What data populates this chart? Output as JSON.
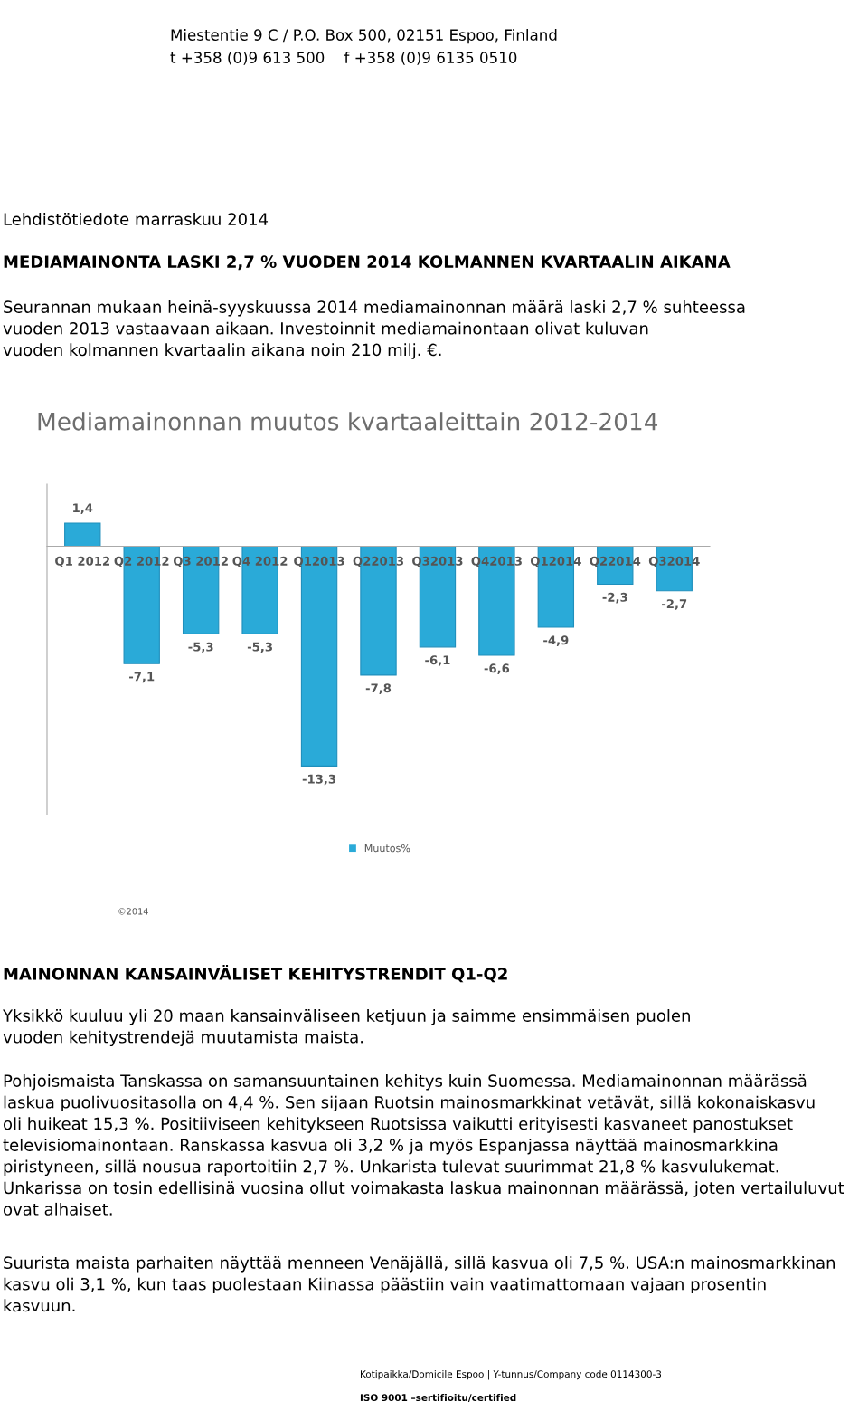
{
  "chart_data": {
    "type": "bar",
    "title": "Mediamainonnan muutos kvartaaleittain 2012-2014",
    "categories": [
      "Q1 2012",
      "Q2 2012",
      "Q3 2012",
      "Q4 2012",
      "Q12013",
      "Q22013",
      "Q32013",
      "Q42013",
      "Q12014",
      "Q22014",
      "Q32014"
    ],
    "series": [
      {
        "name": "Muutos%",
        "color": "#2aaad8",
        "values": [
          1.4,
          -7.1,
          -5.3,
          -5.3,
          -13.3,
          -7.8,
          -6.1,
          -6.6,
          -4.9,
          -2.3,
          -2.7
        ],
        "value_labels": [
          "1,4",
          "-7,1",
          "-5,3",
          "-5,3",
          "-13,3",
          "-7,8",
          "-6,1",
          "-6,6",
          "-4,9",
          "-2,3",
          "-2,7"
        ]
      }
    ],
    "legend": "bottom",
    "annotations": [
      "Miestentie 9 C / P.O. Box 500, 02151 Espoo, Finland",
      "t +358 (0)9 613 500    f +358 (0)9 6135 0510",
      "Lehdistötiedote marraskuu 2014",
      "MEDIAMAINONTA LASKI 2,7 % VUODEN 2014 KOLMANNEN KVARTAALIN AIKANA",
      "Seurannan mukaan heinä-syyskuussa 2014 mediamainonnan määrä laski 2,7 % suhteessa\nvuoden 2013 vastaavaan aikaan. Investoinnit mediamainontaan olivat kuluvan\nvuoden kolmannen kvartaalin aikana noin 210 milj. €.",
      "©2014",
      "MAINONNAN KANSAINVÄLISET KEHITYSTRENDIT Q1-Q2",
      "Yksikkö kuuluu yli 20 maan kansainväliseen ketjuun ja saimme ensimmäisen puolen\nvuoden kehitystrendejä muutamista maista.",
      "Pohjoismaista Tanskassa on samansuuntainen kehitys kuin Suomessa. Mediamainonnan määrässä\nlaskua puolivuositasolla on 4,4 %. Sen sijaan Ruotsin mainosmarkkinat vetävät, sillä kokonaiskasvu\noli huikeat 15,3 %. Positiiviseen kehitykseen Ruotsissa vaikutti erityisesti kasvaneet panostukset\ntelevisiomainontaan. Ranskassa kasvua oli 3,2 % ja myös Espanjassa näyttää mainosmarkkina\npiristyneen, sillä nousua raportoitiin 2,7 %. Unkarista tulevat suurimmat 21,8 % kasvulukemat.\nUnkarissa on tosin edellisinä vuosina ollut voimakasta laskua mainonnan määrässä, joten vertailuluvut\novat alhaiset.",
      "Suurista maista parhaiten näyttää menneen Venäjällä, sillä kasvua oli 7,5 %. USA:n mainosmarkkinan\nkasvu oli 3,1 %, kun taas puolestaan Kiinassa päästiin vain vaatimattomaan vajaan prosentin\nkasvuun.",
      "Kotipaikka/Domicile Espoo | Y-tunnus/Company code 0114300-3",
      "ISO 9001 –sertifioitu/certified"
    ]
  }
}
